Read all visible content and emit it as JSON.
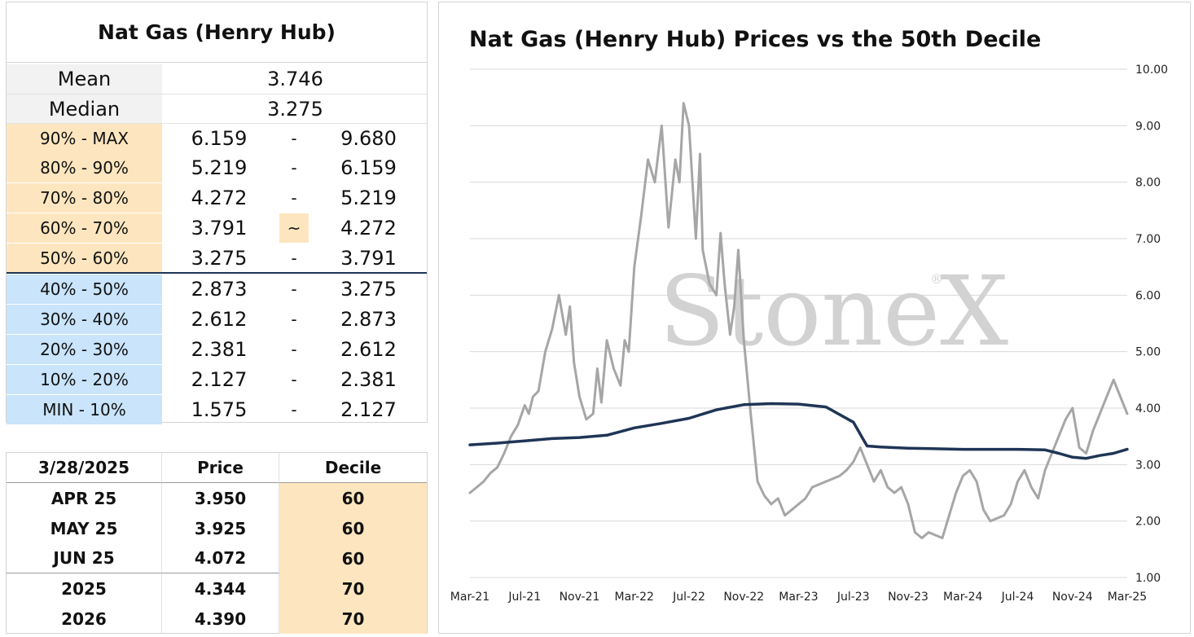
{
  "stats": {
    "title": "Nat Gas (Henry Hub)",
    "mean": {
      "label": "Mean",
      "value": "3.746"
    },
    "median": {
      "label": "Median",
      "value": "3.275"
    },
    "ranges": [
      {
        "label": "90% - MAX",
        "low": "6.159",
        "sep": "-",
        "high": "9.680"
      },
      {
        "label": "80% - 90%",
        "low": "5.219",
        "sep": "-",
        "high": "6.159"
      },
      {
        "label": "70% - 80%",
        "low": "4.272",
        "sep": "-",
        "high": "5.219"
      },
      {
        "label": "60% - 70%",
        "low": "3.791",
        "sep": "~",
        "high": "4.272"
      },
      {
        "label": "50% - 60%",
        "low": "3.275",
        "sep": "-",
        "high": "3.791"
      },
      {
        "label": "40% - 50%",
        "low": "2.873",
        "sep": "-",
        "high": "3.275"
      },
      {
        "label": "30% - 40%",
        "low": "2.612",
        "sep": "-",
        "high": "2.873"
      },
      {
        "label": "20% - 30%",
        "low": "2.381",
        "sep": "-",
        "high": "2.612"
      },
      {
        "label": "10% - 20%",
        "low": "2.127",
        "sep": "-",
        "high": "2.381"
      },
      {
        "label": "MIN - 10%",
        "low": "1.575",
        "sep": "-",
        "high": "2.127"
      }
    ]
  },
  "prices": {
    "header": {
      "date": "3/28/2025",
      "price": "Price",
      "decile": "Decile"
    },
    "rows": [
      {
        "contract": "APR 25",
        "price": "3.950",
        "decile": "60"
      },
      {
        "contract": "MAY 25",
        "price": "3.925",
        "decile": "60"
      },
      {
        "contract": "JUN 25",
        "price": "4.072",
        "decile": "60"
      },
      {
        "contract": "2025",
        "price": "4.344",
        "decile": "70"
      },
      {
        "contract": "2026",
        "price": "4.390",
        "decile": "70"
      }
    ]
  },
  "chart_data": {
    "type": "line",
    "title": "Nat Gas (Henry Hub) Prices vs the 50th Decile",
    "watermark": "StoneX",
    "watermark_mark": "®",
    "ylim": [
      1.0,
      10.0
    ],
    "yticks": [
      "1.00",
      "2.00",
      "3.00",
      "4.00",
      "5.00",
      "6.00",
      "7.00",
      "8.00",
      "9.00",
      "10.00"
    ],
    "xticks": [
      "Mar-21",
      "Jul-21",
      "Nov-21",
      "Mar-22",
      "Jul-22",
      "Nov-22",
      "Mar-23",
      "Jul-23",
      "Nov-23",
      "Mar-24",
      "Jul-24",
      "Nov-24",
      "Mar-25"
    ],
    "grid": true,
    "colors": {
      "price": "#a6a6a6",
      "decile": "#1f3556",
      "grid": "#d9d9d9"
    },
    "series": [
      {
        "key": "price",
        "x": [
          0,
          0.5,
          1,
          1.5,
          2,
          2.5,
          3,
          3.5,
          4,
          4.3,
          4.6,
          5,
          5.5,
          6,
          6.5,
          7,
          7.3,
          7.6,
          8,
          8.5,
          9,
          9.3,
          9.6,
          10,
          10.5,
          11,
          11.3,
          11.6,
          12,
          12.5,
          13,
          13.5,
          14,
          14.5,
          15,
          15.3,
          15.6,
          16,
          16.5,
          16.8,
          17,
          17.5,
          18,
          18.3,
          18.6,
          19,
          19.3,
          19.6,
          20,
          20.5,
          21,
          21.5,
          22,
          22.5,
          23,
          23.5,
          24,
          24.5,
          25,
          25.5,
          26,
          26.5,
          27,
          27.5,
          28,
          28.5,
          29,
          29.5,
          30,
          30.5,
          31,
          31.5,
          32,
          32.5,
          33,
          33.5,
          34,
          34.5,
          35,
          35.5,
          36,
          36.5,
          37,
          37.5,
          38,
          38.5,
          39,
          39.5,
          40,
          40.5,
          41,
          41.5,
          42,
          42.5,
          43,
          43.5,
          44,
          44.5,
          45,
          45.5,
          46,
          46.5,
          47,
          47.5,
          48
        ],
        "y": [
          2.5,
          2.6,
          2.7,
          2.85,
          2.95,
          3.2,
          3.5,
          3.7,
          4.05,
          3.9,
          4.2,
          4.3,
          5.0,
          5.4,
          6.0,
          5.3,
          5.8,
          4.8,
          4.2,
          3.8,
          3.9,
          4.7,
          4.1,
          5.2,
          4.7,
          4.4,
          5.2,
          5.0,
          6.5,
          7.4,
          8.4,
          8.0,
          9.0,
          7.2,
          8.4,
          8.0,
          9.4,
          9.0,
          7.0,
          8.5,
          6.8,
          6.2,
          6.0,
          7.1,
          6.2,
          5.3,
          5.8,
          6.8,
          5.2,
          3.9,
          2.7,
          2.45,
          2.3,
          2.4,
          2.1,
          2.2,
          2.3,
          2.4,
          2.6,
          2.65,
          2.7,
          2.75,
          2.8,
          2.9,
          3.05,
          3.3,
          3.0,
          2.7,
          2.9,
          2.6,
          2.5,
          2.6,
          2.3,
          1.8,
          1.7,
          1.8,
          1.75,
          1.7,
          2.1,
          2.5,
          2.8,
          2.9,
          2.7,
          2.2,
          2.0,
          2.05,
          2.1,
          2.3,
          2.7,
          2.9,
          2.6,
          2.4,
          2.9,
          3.2,
          3.5,
          3.8,
          4.0,
          3.3,
          3.2,
          3.6,
          3.9,
          4.2,
          4.5,
          4.2,
          3.9
        ]
      },
      {
        "key": "decile",
        "x": [
          0,
          2,
          4,
          6,
          8,
          10,
          12,
          14,
          16,
          18,
          20,
          22,
          24,
          26,
          28,
          28.6,
          29,
          30,
          32,
          34,
          36,
          38,
          40,
          42,
          43,
          44,
          45,
          46,
          47,
          48
        ],
        "y": [
          3.35,
          3.38,
          3.42,
          3.46,
          3.48,
          3.52,
          3.65,
          3.73,
          3.82,
          3.97,
          4.06,
          4.08,
          4.07,
          4.02,
          3.75,
          3.5,
          3.33,
          3.31,
          3.29,
          3.28,
          3.27,
          3.27,
          3.27,
          3.26,
          3.2,
          3.13,
          3.11,
          3.16,
          3.2,
          3.27
        ]
      }
    ]
  }
}
